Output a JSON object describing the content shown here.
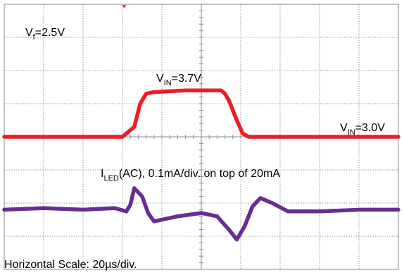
{
  "chart_data": {
    "type": "line",
    "title": "",
    "xlabel": "",
    "ylabel": "",
    "x_divisions": 10,
    "y_divisions": 8,
    "x_unit": "µs",
    "x_per_div": 20,
    "grid": true,
    "colors": {
      "vin": "#ee1c25",
      "iled": "#6a2c91",
      "grid": "#8a8a8a",
      "marker": "#ee1c25"
    },
    "annotations": {
      "vf_main": "V",
      "vf_sub": "f",
      "vf_tail": "=2.5V",
      "vin_high_main": "V",
      "vin_high_sub": "IN",
      "vin_high_tail": "=3.7V",
      "vin_low_main": "V",
      "vin_low_sub": "IN",
      "vin_low_tail": "=3.0V",
      "iled_main": "I",
      "iled_sub": "LED",
      "iled_tail": "(AC), 0.1mA/div. on top of 20mA",
      "hscale": "Horizontal Scale: 20µs/div."
    },
    "series": [
      {
        "name": "VIN",
        "unit": "div",
        "points": [
          [
            0,
            4.0
          ],
          [
            30,
            4.0
          ],
          [
            33,
            4.3
          ],
          [
            34.5,
            5.0
          ],
          [
            36,
            5.3
          ],
          [
            38,
            5.35
          ],
          [
            46,
            5.4
          ],
          [
            55,
            5.4
          ],
          [
            56,
            5.3
          ],
          [
            57,
            5.1
          ],
          [
            59,
            4.5
          ],
          [
            60.5,
            4.1
          ],
          [
            62,
            4.0
          ],
          [
            100,
            4.0
          ]
        ]
      },
      {
        "name": "ILED(AC)",
        "unit": "div",
        "points": [
          [
            0,
            1.8
          ],
          [
            10,
            1.85
          ],
          [
            20,
            1.8
          ],
          [
            28,
            1.85
          ],
          [
            31,
            1.75
          ],
          [
            32,
            1.95
          ],
          [
            33,
            2.45
          ],
          [
            35,
            2.2
          ],
          [
            36.5,
            1.7
          ],
          [
            38,
            1.45
          ],
          [
            44,
            1.6
          ],
          [
            50,
            1.7
          ],
          [
            54,
            1.6
          ],
          [
            57,
            1.2
          ],
          [
            59,
            0.9
          ],
          [
            61,
            1.3
          ],
          [
            63,
            1.9
          ],
          [
            65,
            2.15
          ],
          [
            68,
            2.0
          ],
          [
            72,
            1.75
          ],
          [
            80,
            1.75
          ],
          [
            90,
            1.8
          ],
          [
            100,
            1.8
          ]
        ]
      }
    ]
  }
}
